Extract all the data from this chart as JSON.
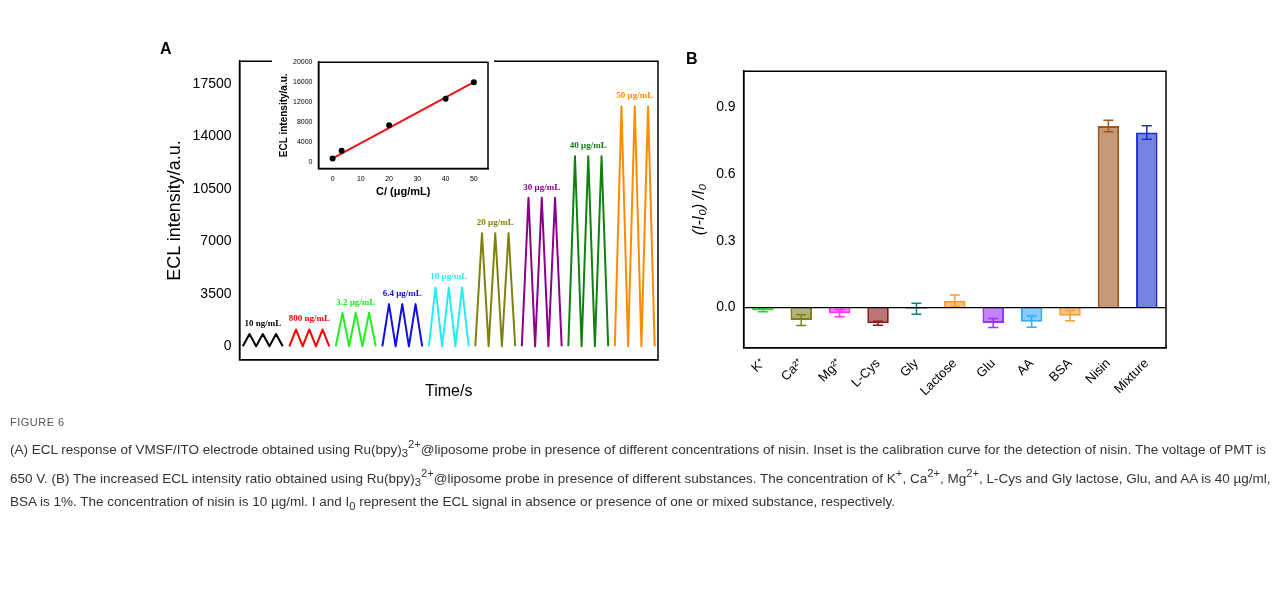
{
  "chart_data": [
    {
      "type": "line",
      "title": "A",
      "xlabel": "Time/s",
      "ylabel": "ECL intensity/a.u.",
      "ylim": [
        -900,
        19000
      ],
      "yticks": [
        0,
        3500,
        7000,
        10500,
        14000,
        17500
      ],
      "tick_labels": "y",
      "grid": false,
      "marker": "none",
      "line_style": "solid",
      "categories": [
        null,
        null,
        null,
        null,
        null,
        null,
        null,
        null,
        null,
        null,
        null,
        null,
        null,
        null,
        null,
        null,
        null,
        null,
        null,
        null,
        null,
        null,
        null,
        null,
        null,
        null,
        null,
        null,
        null,
        null,
        null,
        null,
        null,
        null,
        null,
        null,
        null,
        null,
        null,
        null,
        null,
        null,
        null,
        null,
        null,
        null,
        null,
        null,
        null,
        null,
        null,
        null,
        null,
        null,
        null,
        null,
        null,
        null,
        null,
        null,
        null,
        null,
        null
      ],
      "series": [
        {
          "name": "10 ng/mL",
          "color": "#000000",
          "values": [
            0,
            820,
            0,
            820,
            0,
            820,
            0,
            null,
            null,
            null,
            null,
            null,
            null,
            null,
            null,
            null,
            null,
            null,
            null,
            null,
            null,
            null,
            null,
            null,
            null,
            null,
            null,
            null,
            null,
            null,
            null,
            null,
            null,
            null,
            null,
            null,
            null,
            null,
            null,
            null,
            null,
            null,
            null,
            null,
            null,
            null,
            null,
            null,
            null,
            null,
            null,
            null,
            null,
            null,
            null,
            null,
            null,
            null,
            null,
            null,
            null,
            null,
            null
          ]
        },
        {
          "name": "800 ng/mL",
          "color": "#ff0000",
          "values": [
            null,
            null,
            null,
            null,
            null,
            null,
            null,
            0,
            1120,
            0,
            1120,
            0,
            1120,
            0,
            null,
            null,
            null,
            null,
            null,
            null,
            null,
            null,
            null,
            null,
            null,
            null,
            null,
            null,
            null,
            null,
            null,
            null,
            null,
            null,
            null,
            null,
            null,
            null,
            null,
            null,
            null,
            null,
            null,
            null,
            null,
            null,
            null,
            null,
            null,
            null,
            null,
            null,
            null,
            null,
            null,
            null,
            null,
            null,
            null,
            null,
            null,
            null,
            null
          ]
        },
        {
          "name": "3.2 μg/mL",
          "color": "#22ee22",
          "values": [
            null,
            null,
            null,
            null,
            null,
            null,
            null,
            null,
            null,
            null,
            null,
            null,
            null,
            null,
            0,
            2230,
            0,
            2230,
            0,
            2230,
            0,
            null,
            null,
            null,
            null,
            null,
            null,
            null,
            null,
            null,
            null,
            null,
            null,
            null,
            null,
            null,
            null,
            null,
            null,
            null,
            null,
            null,
            null,
            null,
            null,
            null,
            null,
            null,
            null,
            null,
            null,
            null,
            null,
            null,
            null,
            null,
            null,
            null,
            null,
            null,
            null,
            null,
            null
          ]
        },
        {
          "name": "6.4 μg/mL",
          "color": "#1010e0",
          "values": [
            null,
            null,
            null,
            null,
            null,
            null,
            null,
            null,
            null,
            null,
            null,
            null,
            null,
            null,
            null,
            null,
            null,
            null,
            null,
            null,
            null,
            0,
            2810,
            0,
            2810,
            0,
            2810,
            0,
            null,
            null,
            null,
            null,
            null,
            null,
            null,
            null,
            null,
            null,
            null,
            null,
            null,
            null,
            null,
            null,
            null,
            null,
            null,
            null,
            null,
            null,
            null,
            null,
            null,
            null,
            null,
            null,
            null,
            null,
            null,
            null,
            null,
            null,
            null
          ]
        },
        {
          "name": "10 μg/mL",
          "color": "#22eeee",
          "values": [
            null,
            null,
            null,
            null,
            null,
            null,
            null,
            null,
            null,
            null,
            null,
            null,
            null,
            null,
            null,
            null,
            null,
            null,
            null,
            null,
            null,
            null,
            null,
            null,
            null,
            null,
            null,
            null,
            0,
            3910,
            0,
            3910,
            0,
            3910,
            0,
            null,
            null,
            null,
            null,
            null,
            null,
            null,
            null,
            null,
            null,
            null,
            null,
            null,
            null,
            null,
            null,
            null,
            null,
            null,
            null,
            null,
            null,
            null,
            null,
            null,
            null,
            null,
            null
          ]
        },
        {
          "name": "20 μg/mL",
          "color": "#808010",
          "values": [
            null,
            null,
            null,
            null,
            null,
            null,
            null,
            null,
            null,
            null,
            null,
            null,
            null,
            null,
            null,
            null,
            null,
            null,
            null,
            null,
            null,
            null,
            null,
            null,
            null,
            null,
            null,
            null,
            null,
            null,
            null,
            null,
            null,
            null,
            null,
            0,
            7540,
            0,
            7540,
            0,
            7540,
            0,
            null,
            null,
            null,
            null,
            null,
            null,
            null,
            null,
            null,
            null,
            null,
            null,
            null,
            null,
            null,
            null,
            null,
            null,
            null,
            null,
            null
          ]
        },
        {
          "name": "30 μg/mL",
          "color": "#8b008b",
          "values": [
            null,
            null,
            null,
            null,
            null,
            null,
            null,
            null,
            null,
            null,
            null,
            null,
            null,
            null,
            null,
            null,
            null,
            null,
            null,
            null,
            null,
            null,
            null,
            null,
            null,
            null,
            null,
            null,
            null,
            null,
            null,
            null,
            null,
            null,
            null,
            null,
            null,
            null,
            null,
            null,
            null,
            null,
            0,
            9900,
            0,
            9900,
            0,
            9900,
            0,
            null,
            null,
            null,
            null,
            null,
            null,
            null,
            null,
            null,
            null,
            null,
            null,
            null,
            null
          ]
        },
        {
          "name": "40 μg/mL",
          "color": "#108010",
          "values": [
            null,
            null,
            null,
            null,
            null,
            null,
            null,
            null,
            null,
            null,
            null,
            null,
            null,
            null,
            null,
            null,
            null,
            null,
            null,
            null,
            null,
            null,
            null,
            null,
            null,
            null,
            null,
            null,
            null,
            null,
            null,
            null,
            null,
            null,
            null,
            null,
            null,
            null,
            null,
            null,
            null,
            null,
            null,
            null,
            null,
            null,
            null,
            null,
            null,
            0,
            12660,
            0,
            12660,
            0,
            12660,
            0,
            null,
            null,
            null,
            null,
            null,
            null,
            null
          ]
        },
        {
          "name": "50 μg/mL",
          "color": "#ff8c00",
          "values": [
            null,
            null,
            null,
            null,
            null,
            null,
            null,
            null,
            null,
            null,
            null,
            null,
            null,
            null,
            null,
            null,
            null,
            null,
            null,
            null,
            null,
            null,
            null,
            null,
            null,
            null,
            null,
            null,
            null,
            null,
            null,
            null,
            null,
            null,
            null,
            null,
            null,
            null,
            null,
            null,
            null,
            null,
            null,
            null,
            null,
            null,
            null,
            null,
            null,
            null,
            null,
            null,
            null,
            null,
            null,
            null,
            0,
            15980,
            0,
            15980,
            0,
            15980,
            0
          ]
        }
      ],
      "annotations": [
        "FIGURE 6",
        "(A) ECL response of VMSF/ITO electrode obtained using Ru(bpy)$_{3}$$^{2+}$@liposome probe in presence of different concentrations of nisin. Inset is the calibration curve for the detection of nisin. The voltage of PMT is 650 V. (B) The increased ECL intensity ratio obtained using Ru(bpy)$_{3}$$^{2+}$@liposome probe in presence of different substances. The concentration of K$^{+}$, Ca$^{2+}$, Mg$^{2+}$, L-Cys and Gly lactose, Glu, and AA is 40 µg/ml, BSA is 1%. The concentration of nisin is 10 µg/ml. I and I$_{0}$ represent the ECL signal in absence or presence of one or mixed substance, respectively."
      ]
    },
    {
      "type": "scatter",
      "xlabel": "C/ (μg/mL)",
      "ylabel": "ECL intensity/a.u.",
      "xlim": [
        -5,
        55
      ],
      "xticks": [
        0,
        10,
        20,
        30,
        40,
        50
      ],
      "ylim": [
        -1200,
        20000
      ],
      "yticks": [
        0,
        4000,
        8000,
        12000,
        16000,
        20000
      ],
      "grid": false,
      "marker": "circle",
      "series": [
        {
          "color": "#000000",
          "x": [
            0,
            3.2,
            20,
            40,
            50
          ],
          "values": [
            800,
            2300,
            7400,
            12700,
            16000
          ]
        },
        {
          "type": "line",
          "marker": "none",
          "color": "#ee1111",
          "x": [
            0,
            50
          ],
          "values": [
            800,
            16000
          ]
        }
      ]
    },
    {
      "type": "bar",
      "title": "B",
      "ylabel": "(I-I₀) /I₀",
      "ylim": [
        -0.18,
        1.06
      ],
      "yticks": [
        {
          "value": 0,
          "label": "0.0"
        },
        0.3,
        0.6,
        0.9
      ],
      "grid": false,
      "categories": [
        "K⁺",
        "Ca²⁺",
        "Mg²⁺",
        "L-Cys",
        "Gly",
        "Lactose",
        "Glu",
        "AA",
        "BSA",
        "Nisin",
        "Mixture"
      ],
      "values": [
        -0.013,
        -0.056,
        -0.025,
        -0.07,
        -0.005,
        0.031,
        -0.069,
        -0.063,
        -0.036,
        0.814,
        0.785
      ],
      "errors": [
        0.006,
        0.024,
        0.016,
        0.009,
        0.025,
        0.026,
        0.02,
        0.025,
        0.023,
        0.026,
        0.03
      ],
      "colors": [
        "#22dd22",
        "#808020",
        "#ff33ff",
        "#8b1a1a",
        "#108080",
        "#ff9933",
        "#9933ff",
        "#33aaff",
        "#f0a030",
        "#a0561a",
        "#1a2ecc"
      ],
      "ref_lines": [
        {
          "axis": "y",
          "value": 0,
          "color": "#000000"
        }
      ]
    }
  ]
}
